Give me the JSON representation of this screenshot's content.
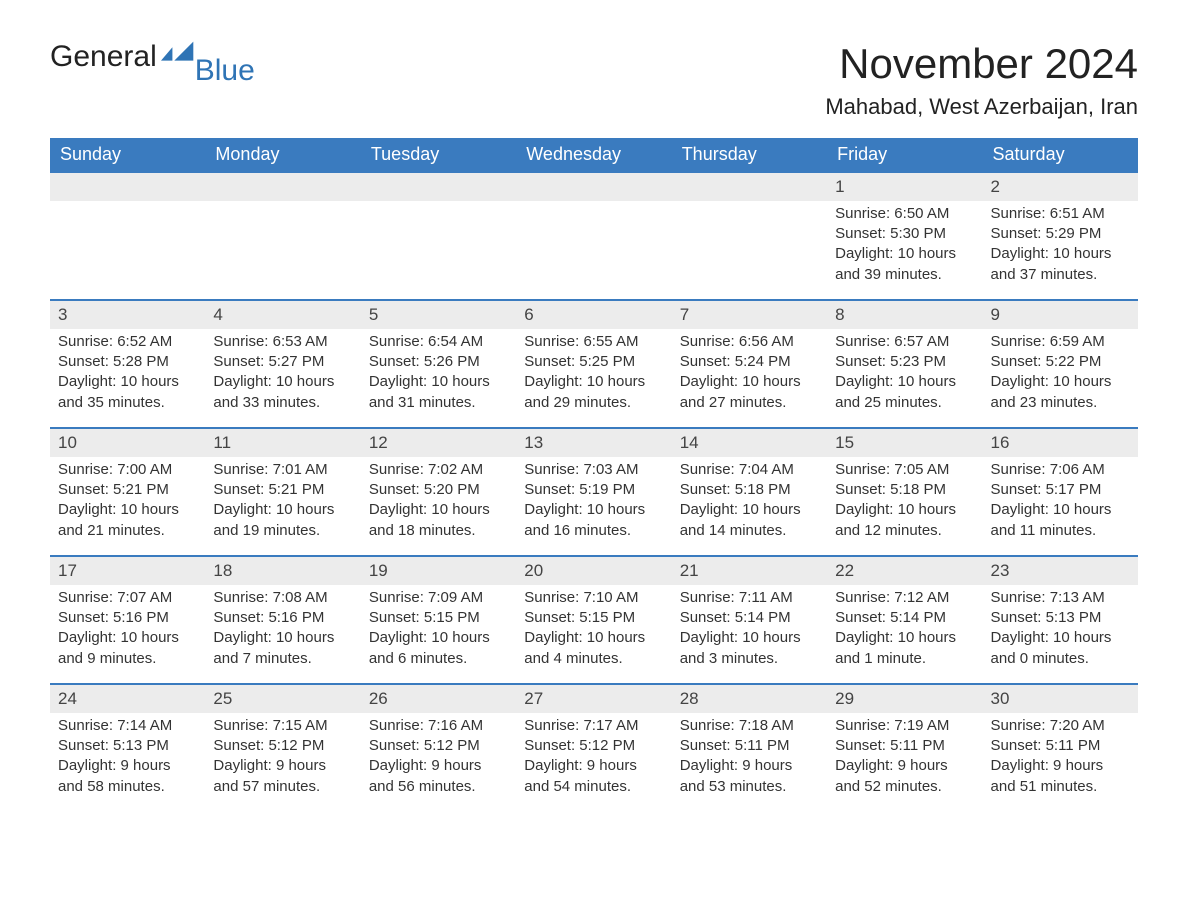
{
  "colors": {
    "header_bg": "#3a7bbf",
    "header_text": "#ffffff",
    "row_border": "#3a7bbf",
    "daynum_bg": "#ececec",
    "page_bg": "#ffffff",
    "text": "#333333",
    "logo_blue": "#2f74b5"
  },
  "logo": {
    "word1": "General",
    "word2": "Blue"
  },
  "title": "November 2024",
  "location": "Mahabad, West Azerbaijan, Iran",
  "days_of_week": [
    "Sunday",
    "Monday",
    "Tuesday",
    "Wednesday",
    "Thursday",
    "Friday",
    "Saturday"
  ],
  "labels": {
    "sunrise_prefix": "Sunrise: ",
    "sunset_prefix": "Sunset: ",
    "daylight_prefix": "Daylight: "
  },
  "leading_blanks": 5,
  "days": [
    {
      "n": 1,
      "sunrise": "6:50 AM",
      "sunset": "5:30 PM",
      "daylight": "10 hours and 39 minutes."
    },
    {
      "n": 2,
      "sunrise": "6:51 AM",
      "sunset": "5:29 PM",
      "daylight": "10 hours and 37 minutes."
    },
    {
      "n": 3,
      "sunrise": "6:52 AM",
      "sunset": "5:28 PM",
      "daylight": "10 hours and 35 minutes."
    },
    {
      "n": 4,
      "sunrise": "6:53 AM",
      "sunset": "5:27 PM",
      "daylight": "10 hours and 33 minutes."
    },
    {
      "n": 5,
      "sunrise": "6:54 AM",
      "sunset": "5:26 PM",
      "daylight": "10 hours and 31 minutes."
    },
    {
      "n": 6,
      "sunrise": "6:55 AM",
      "sunset": "5:25 PM",
      "daylight": "10 hours and 29 minutes."
    },
    {
      "n": 7,
      "sunrise": "6:56 AM",
      "sunset": "5:24 PM",
      "daylight": "10 hours and 27 minutes."
    },
    {
      "n": 8,
      "sunrise": "6:57 AM",
      "sunset": "5:23 PM",
      "daylight": "10 hours and 25 minutes."
    },
    {
      "n": 9,
      "sunrise": "6:59 AM",
      "sunset": "5:22 PM",
      "daylight": "10 hours and 23 minutes."
    },
    {
      "n": 10,
      "sunrise": "7:00 AM",
      "sunset": "5:21 PM",
      "daylight": "10 hours and 21 minutes."
    },
    {
      "n": 11,
      "sunrise": "7:01 AM",
      "sunset": "5:21 PM",
      "daylight": "10 hours and 19 minutes."
    },
    {
      "n": 12,
      "sunrise": "7:02 AM",
      "sunset": "5:20 PM",
      "daylight": "10 hours and 18 minutes."
    },
    {
      "n": 13,
      "sunrise": "7:03 AM",
      "sunset": "5:19 PM",
      "daylight": "10 hours and 16 minutes."
    },
    {
      "n": 14,
      "sunrise": "7:04 AM",
      "sunset": "5:18 PM",
      "daylight": "10 hours and 14 minutes."
    },
    {
      "n": 15,
      "sunrise": "7:05 AM",
      "sunset": "5:18 PM",
      "daylight": "10 hours and 12 minutes."
    },
    {
      "n": 16,
      "sunrise": "7:06 AM",
      "sunset": "5:17 PM",
      "daylight": "10 hours and 11 minutes."
    },
    {
      "n": 17,
      "sunrise": "7:07 AM",
      "sunset": "5:16 PM",
      "daylight": "10 hours and 9 minutes."
    },
    {
      "n": 18,
      "sunrise": "7:08 AM",
      "sunset": "5:16 PM",
      "daylight": "10 hours and 7 minutes."
    },
    {
      "n": 19,
      "sunrise": "7:09 AM",
      "sunset": "5:15 PM",
      "daylight": "10 hours and 6 minutes."
    },
    {
      "n": 20,
      "sunrise": "7:10 AM",
      "sunset": "5:15 PM",
      "daylight": "10 hours and 4 minutes."
    },
    {
      "n": 21,
      "sunrise": "7:11 AM",
      "sunset": "5:14 PM",
      "daylight": "10 hours and 3 minutes."
    },
    {
      "n": 22,
      "sunrise": "7:12 AM",
      "sunset": "5:14 PM",
      "daylight": "10 hours and 1 minute."
    },
    {
      "n": 23,
      "sunrise": "7:13 AM",
      "sunset": "5:13 PM",
      "daylight": "10 hours and 0 minutes."
    },
    {
      "n": 24,
      "sunrise": "7:14 AM",
      "sunset": "5:13 PM",
      "daylight": "9 hours and 58 minutes."
    },
    {
      "n": 25,
      "sunrise": "7:15 AM",
      "sunset": "5:12 PM",
      "daylight": "9 hours and 57 minutes."
    },
    {
      "n": 26,
      "sunrise": "7:16 AM",
      "sunset": "5:12 PM",
      "daylight": "9 hours and 56 minutes."
    },
    {
      "n": 27,
      "sunrise": "7:17 AM",
      "sunset": "5:12 PM",
      "daylight": "9 hours and 54 minutes."
    },
    {
      "n": 28,
      "sunrise": "7:18 AM",
      "sunset": "5:11 PM",
      "daylight": "9 hours and 53 minutes."
    },
    {
      "n": 29,
      "sunrise": "7:19 AM",
      "sunset": "5:11 PM",
      "daylight": "9 hours and 52 minutes."
    },
    {
      "n": 30,
      "sunrise": "7:20 AM",
      "sunset": "5:11 PM",
      "daylight": "9 hours and 51 minutes."
    }
  ]
}
